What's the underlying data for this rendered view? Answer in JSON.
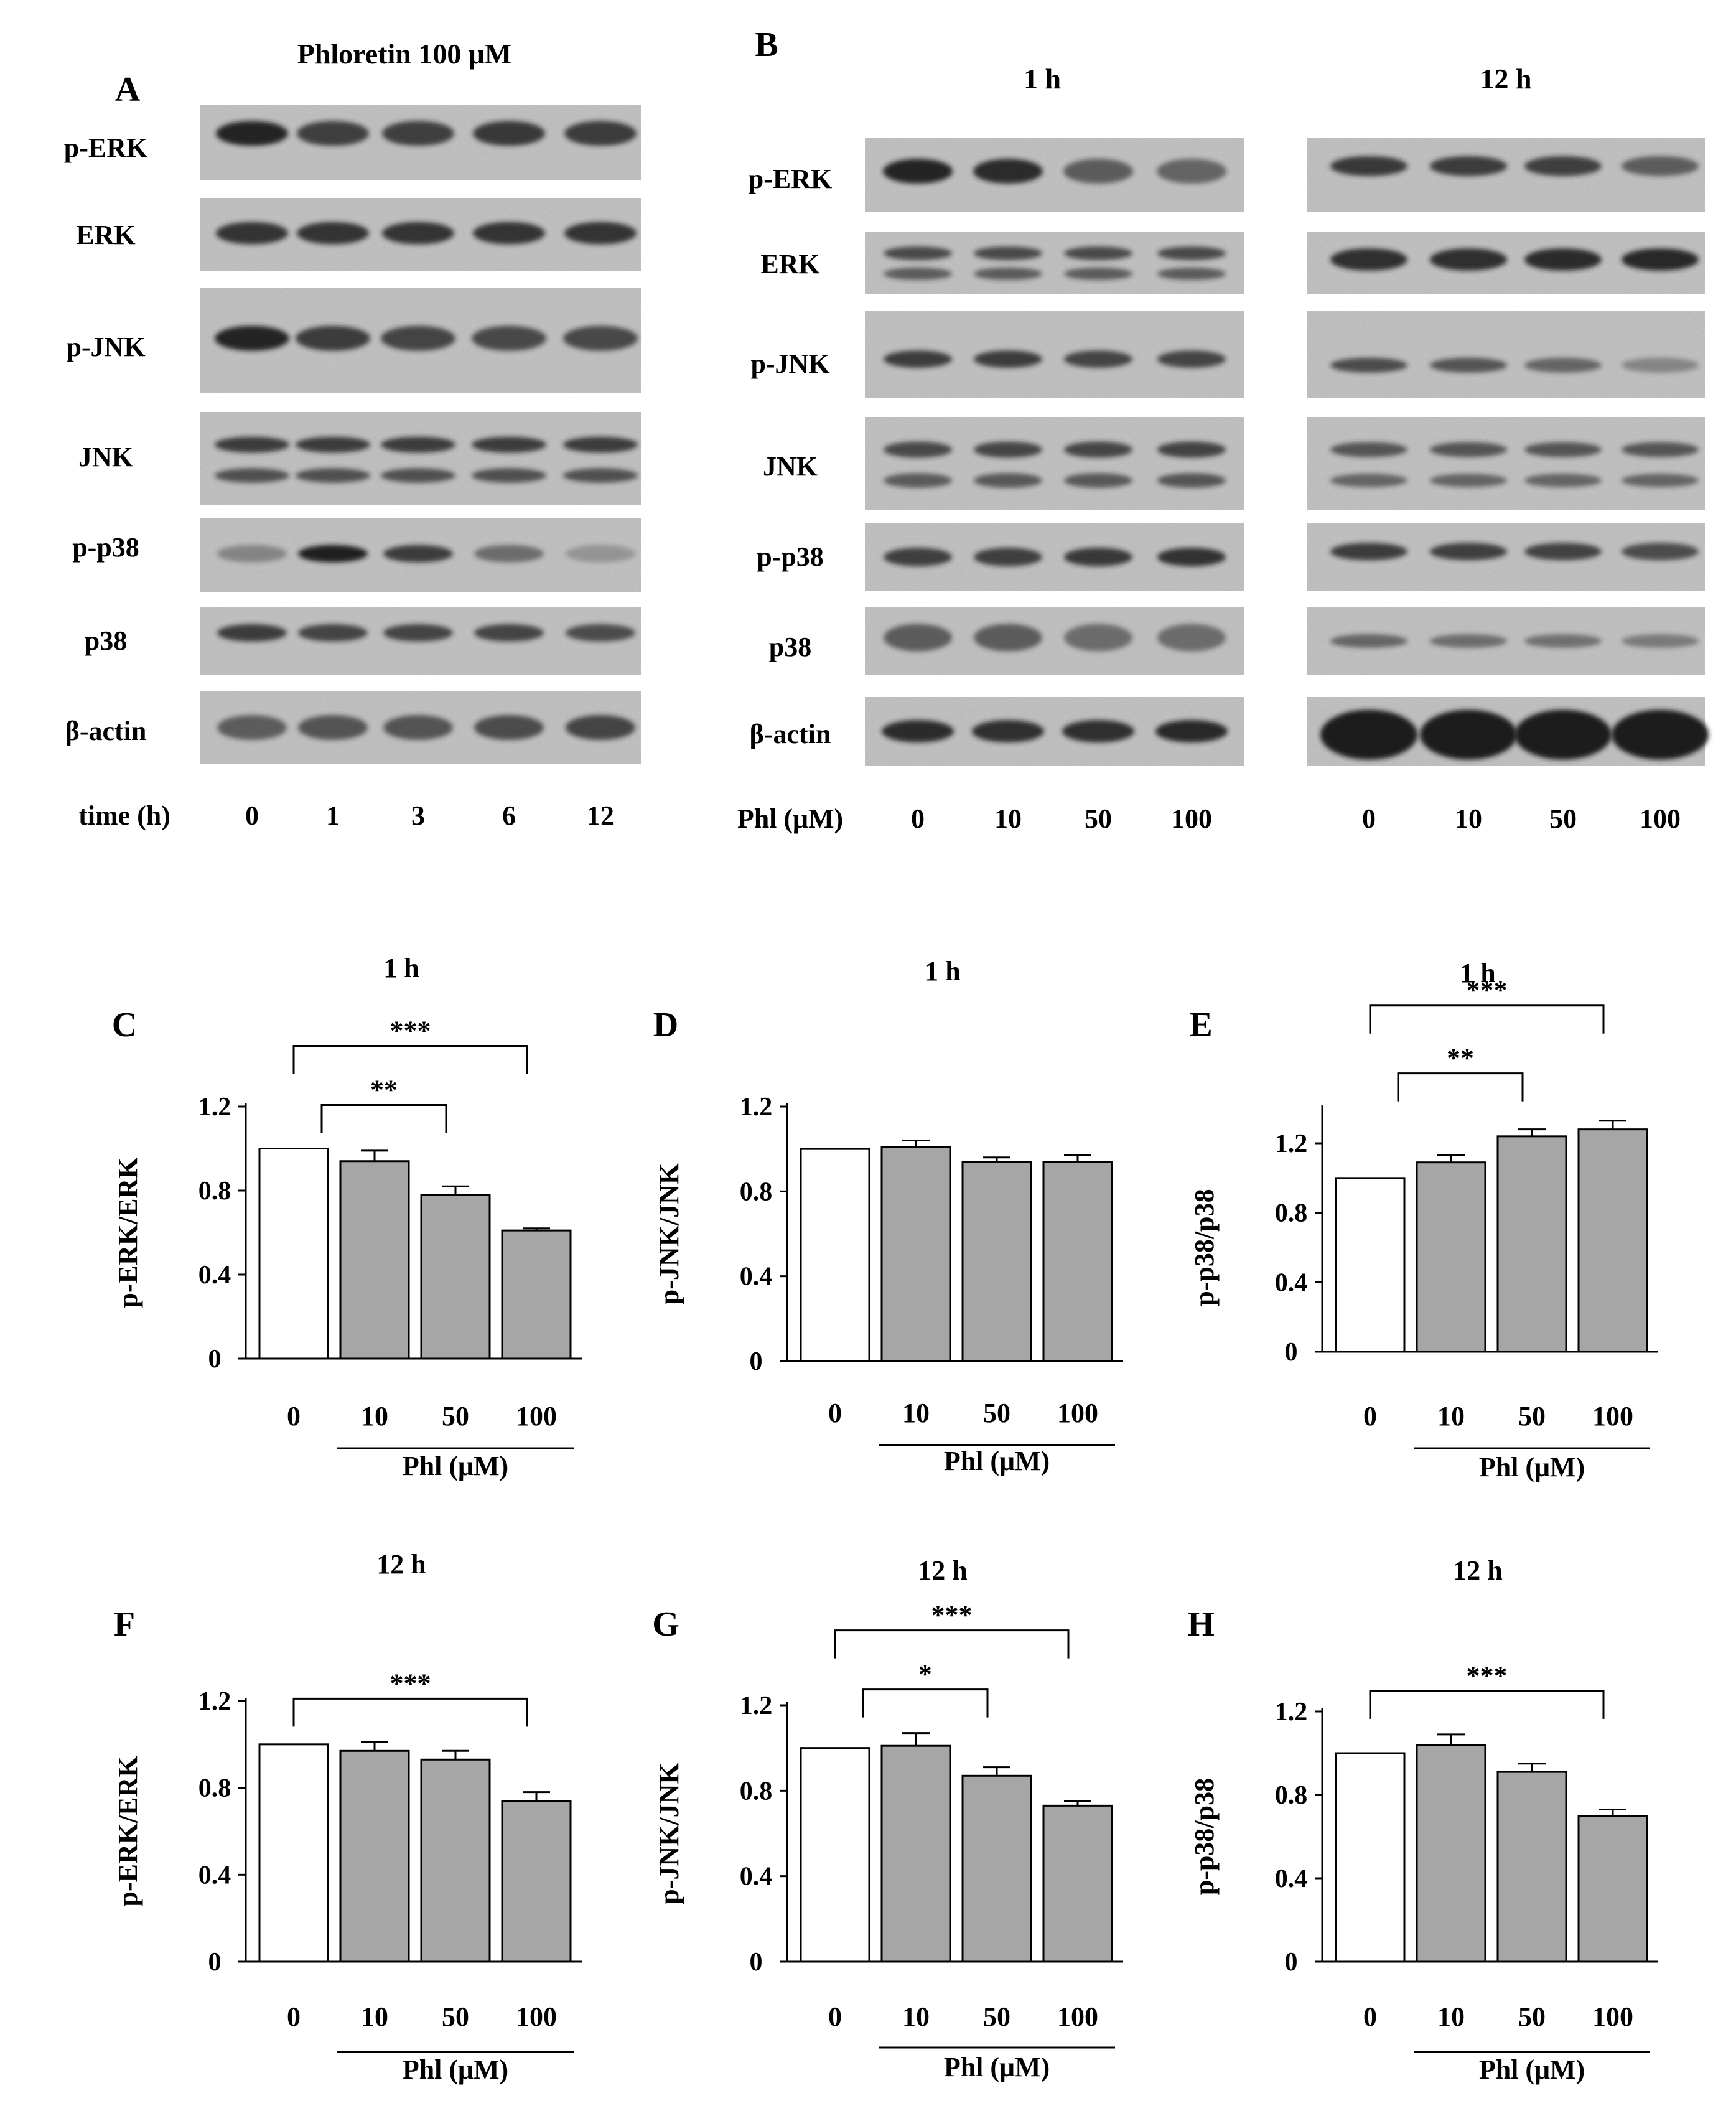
{
  "panels": {
    "A": {
      "letter": "A",
      "title": "Phloretin 100 μM",
      "rows": [
        "p-ERK",
        "ERK",
        "p-JNK",
        "JNK",
        "p-p38",
        "p38",
        "β-actin"
      ],
      "axis_label": "time (h)",
      "lanes": [
        "0",
        "1",
        "3",
        "6",
        "12"
      ]
    },
    "B": {
      "letter": "B",
      "time_1h": "1 h",
      "time_12h": "12 h",
      "rows": [
        "p-ERK",
        "ERK",
        "p-JNK",
        "JNK",
        "p-p38",
        "p38",
        "β-actin"
      ],
      "axis_label": "Phl (μM)",
      "lanes": [
        "0",
        "10",
        "50",
        "100"
      ]
    }
  },
  "chart_data": [
    {
      "type": "bar",
      "letter": "C",
      "title": "1 h",
      "ylabel": "p-ERK/ERK",
      "xlabel": "Phl (μM)",
      "categories": [
        "0",
        "10",
        "50",
        "100"
      ],
      "values": [
        1.0,
        0.94,
        0.78,
        0.61
      ],
      "errors": [
        0,
        0.05,
        0.04,
        0.01
      ],
      "ylim": [
        0,
        1.2
      ],
      "yticks": [
        "0",
        "0.4",
        "0.8",
        "1.2"
      ],
      "significance": [
        {
          "from": 0,
          "to": 2,
          "label": "**"
        },
        {
          "from": 0,
          "to": 3,
          "label": "***"
        }
      ]
    },
    {
      "type": "bar",
      "letter": "D",
      "title": "1 h",
      "ylabel": "p-JNK/JNK",
      "xlabel": "Phl (μM)",
      "categories": [
        "0",
        "10",
        "50",
        "100"
      ],
      "values": [
        1.0,
        1.01,
        0.94,
        0.94
      ],
      "errors": [
        0,
        0.03,
        0.02,
        0.03
      ],
      "ylim": [
        0,
        1.2
      ],
      "yticks": [
        "0",
        "0.4",
        "0.8",
        "1.2"
      ],
      "significance": []
    },
    {
      "type": "bar",
      "letter": "E",
      "title": "1 h",
      "ylabel": "p-p38/p38",
      "xlabel": "Phl (μM)",
      "categories": [
        "0",
        "10",
        "50",
        "100"
      ],
      "values": [
        1.0,
        1.09,
        1.24,
        1.28
      ],
      "errors": [
        0,
        0.04,
        0.04,
        0.05
      ],
      "ylim": [
        0,
        1.4
      ],
      "yticks": [
        "0",
        "0.4",
        "0.8",
        "1.2"
      ],
      "significance": [
        {
          "from": 0,
          "to": 2,
          "label": "**"
        },
        {
          "from": 0,
          "to": 3,
          "label": "***"
        }
      ]
    },
    {
      "type": "bar",
      "letter": "F",
      "title": "12 h",
      "ylabel": "p-ERK/ERK",
      "xlabel": "Phl (μM)",
      "categories": [
        "0",
        "10",
        "50",
        "100"
      ],
      "values": [
        1.0,
        0.97,
        0.93,
        0.74
      ],
      "errors": [
        0,
        0.04,
        0.04,
        0.04
      ],
      "ylim": [
        0,
        1.2
      ],
      "yticks": [
        "0",
        "0.4",
        "0.8",
        "1.2"
      ],
      "significance": [
        {
          "from": 0,
          "to": 3,
          "label": "***"
        }
      ]
    },
    {
      "type": "bar",
      "letter": "G",
      "title": "12 h",
      "ylabel": "p-JNK/JNK",
      "xlabel": "Phl (μM)",
      "categories": [
        "0",
        "10",
        "50",
        "100"
      ],
      "values": [
        1.0,
        1.01,
        0.87,
        0.73
      ],
      "errors": [
        0,
        0.06,
        0.04,
        0.02
      ],
      "ylim": [
        0,
        1.2
      ],
      "yticks": [
        "0",
        "0.4",
        "0.8",
        "1.2"
      ],
      "significance": [
        {
          "from": 0,
          "to": 2,
          "label": "*"
        },
        {
          "from": 0,
          "to": 3,
          "label": "***"
        }
      ]
    },
    {
      "type": "bar",
      "letter": "H",
      "title": "12 h",
      "ylabel": "p-p38/p38",
      "xlabel": "Phl (μM)",
      "categories": [
        "0",
        "10",
        "50",
        "100"
      ],
      "values": [
        1.0,
        1.04,
        0.91,
        0.7
      ],
      "errors": [
        0,
        0.05,
        0.04,
        0.03
      ],
      "ylim": [
        0,
        1.2
      ],
      "yticks": [
        "0",
        "0.4",
        "0.8",
        "1.2"
      ],
      "significance": [
        {
          "from": 0,
          "to": 3,
          "label": "***"
        }
      ]
    }
  ],
  "colors": {
    "control_bar": "#ffffff",
    "treated_bar": "#a6a6a6",
    "blot_bg": "#c8c8c8",
    "band": "#1e1e1e"
  }
}
